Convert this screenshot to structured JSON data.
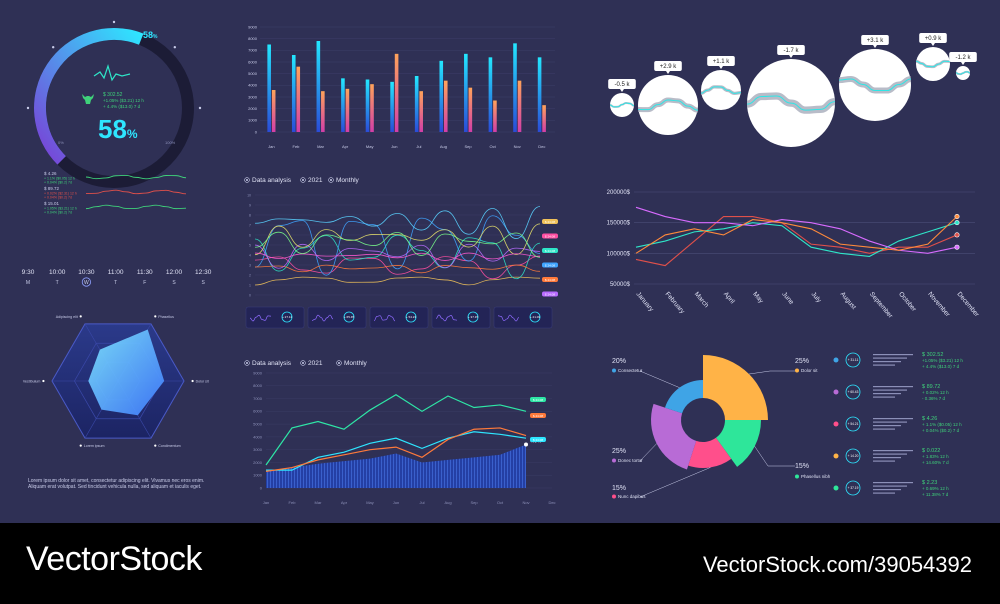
{
  "gauge": {
    "percent": 58,
    "percent_label": "58",
    "percent_sign": "%",
    "top_label": "58",
    "top_sign": "%",
    "min_label": "0%",
    "max_label": "100%",
    "stat_value": "$ 302.52",
    "stat_line1": "+1.05% ($3.21) 12 h",
    "stat_line2": "+ 4.4% ($13.0) 7 d",
    "color_start": "#7a3fd6",
    "color_end": "#2ee6ff"
  },
  "mini_series": [
    {
      "value": "$ 4.26",
      "line1": "+ 1.1% ($0.05) 12 h",
      "line2": "+ 0.04% ($0.2) 7d",
      "color": "#3fd17a"
    },
    {
      "value": "$ 89.72",
      "line1": "+ 0.02% ($2.31) 12 h",
      "line2": "+ 0.04% ($0.2) 7d",
      "color": "#e0504a"
    },
    {
      "value": "$ 15.01",
      "line1": "+ 1.05% ($3.21) 12 h",
      "line2": "+ 0.04% ($0.2) 7d",
      "color": "#3fd17a"
    }
  ],
  "timeline": [
    {
      "time": "9:30",
      "day": "M"
    },
    {
      "time": "10:00",
      "day": "T"
    },
    {
      "time": "10:30",
      "day": "W",
      "active": true
    },
    {
      "time": "11:00",
      "day": "T"
    },
    {
      "time": "11:30",
      "day": "F"
    },
    {
      "time": "12:00",
      "day": "S"
    },
    {
      "time": "12:30",
      "day": "S"
    }
  ],
  "radar": {
    "axes": [
      "Adipiscing elit",
      "Phasellus",
      "Dolor sit",
      "Condimentum",
      "Lorem ipsum",
      "Vestibulum"
    ],
    "values": [
      0.55,
      0.9,
      0.7,
      0.6,
      0.5,
      0.45
    ],
    "caption_1": "Lorem ipsum dolor sit amet, consectetur adipiscing elit. Vivamus nec eros enim.",
    "caption_2": "Aliquam erat volutpat. Sed tincidunt vehicula nulla, sed aliquam et iaculis eget."
  },
  "bar_chart": {
    "type": "bar",
    "categories": [
      "Jan",
      "Feb",
      "Mar",
      "Apr",
      "May",
      "Jun",
      "Jul",
      "Aug",
      "Sep",
      "Oct",
      "Nov",
      "Dec"
    ],
    "series": [
      {
        "values": [
          7500,
          6600,
          7800,
          4600,
          4500,
          4300,
          4800,
          6100,
          6700,
          6400,
          7600,
          6400
        ],
        "color": "#23e7ff"
      },
      {
        "values": [
          3600,
          5600,
          3500,
          3700,
          4100,
          6700,
          3500,
          4400,
          3800,
          2700,
          4400,
          2300
        ],
        "color": "#f08a6b"
      }
    ],
    "yticks": [
      "0",
      "1000",
      "2000",
      "3000",
      "4000",
      "5000",
      "6000",
      "7000",
      "8000",
      "9000"
    ],
    "ylim": [
      0,
      9000
    ]
  },
  "multiline_panel": {
    "radio_1": "Data analysis",
    "radio_2": "2021",
    "radio_3": "Monthly",
    "yticks": [
      "0",
      "1",
      "2",
      "3",
      "4",
      "5",
      "6",
      "7",
      "8",
      "9",
      "10"
    ],
    "series_colors": [
      "#f0c15a",
      "#ff4fa2",
      "#2ee6c8",
      "#3fa4ff",
      "#ff7a3b",
      "#b86bff",
      "#e6e06a",
      "#5ad1ff",
      "#ff5ad1",
      "#7aff8a"
    ],
    "tags": [
      "$ 24.08",
      "$ 24.08",
      "$ 24.08",
      "$ 24.08",
      "$ 24.08",
      "$ 24.08"
    ],
    "cards": [
      "+ 27.11",
      "+ 65.45",
      "+ 54.21",
      "+ 37.15",
      "+ 21.03"
    ]
  },
  "area_panel": {
    "radio_1": "Data analysis",
    "radio_2": "2021",
    "radio_3": "Monthly",
    "months": [
      "Jan",
      "Feb",
      "Mar",
      "Apr",
      "May",
      "Jun",
      "Jul",
      "Aug",
      "Sep",
      "Oct",
      "Nov",
      "Dec"
    ],
    "yticks": [
      "0",
      "1000",
      "2000",
      "3000",
      "4000",
      "5000",
      "6000",
      "7000",
      "8000",
      "9000"
    ],
    "ylim": [
      0,
      9000
    ],
    "teal": [
      1800,
      4700,
      5200,
      4600,
      6100,
      7300,
      6000,
      7200,
      6300,
      6500,
      6000,
      7100
    ],
    "orange": [
      1300,
      1600,
      2200,
      2600,
      3000,
      3200,
      2400,
      3800,
      4600,
      4700,
      4100,
      5600
    ],
    "cyan": [
      1400,
      1400,
      2400,
      2800,
      3500,
      3900,
      3100,
      3900,
      4400,
      4200,
      3900,
      4000
    ],
    "area": [
      1300,
      1600,
      1900,
      2100,
      2300,
      2700,
      2000,
      2200,
      2400,
      2600,
      3400,
      4500
    ],
    "marker_label": "4.6 k",
    "tags": [
      "$ 24.08",
      "$ 24.08",
      "$ 24.08"
    ]
  },
  "bubbles": [
    {
      "label": "-0.5 k",
      "r": 12
    },
    {
      "label": "+2.9 k",
      "r": 30
    },
    {
      "label": "+1.1 k",
      "r": 20
    },
    {
      "label": "-1.7 k",
      "r": 44
    },
    {
      "label": "+3.1 k",
      "r": 36
    },
    {
      "label": "+0.9 k",
      "r": 17
    },
    {
      "label": "-1.2 k",
      "r": 7
    }
  ],
  "month_lines": {
    "type": "line",
    "categories": [
      "January",
      "February",
      "March",
      "April",
      "May",
      "June",
      "July",
      "August",
      "September",
      "October",
      "November",
      "December"
    ],
    "yticks": [
      "50000$",
      "100000$",
      "150000$",
      "200000$"
    ],
    "ylim": [
      50000,
      200000
    ],
    "series": [
      {
        "color": "#e0504a",
        "values": [
          90000,
          80000,
          120000,
          160000,
          160000,
          150000,
          115000,
          110000,
          100000,
          110000,
          110000,
          130000
        ]
      },
      {
        "color": "#2ee6c8",
        "values": [
          110000,
          120000,
          135000,
          140000,
          150000,
          145000,
          110000,
          100000,
          95000,
          120000,
          135000,
          150000
        ]
      },
      {
        "color": "#d86bff",
        "values": [
          175000,
          160000,
          150000,
          150000,
          145000,
          155000,
          150000,
          140000,
          120000,
          105000,
          100000,
          110000
        ]
      },
      {
        "color": "#ff8a3b",
        "values": [
          100000,
          130000,
          140000,
          130000,
          155000,
          150000,
          140000,
          115000,
          110000,
          105000,
          115000,
          160000
        ]
      }
    ]
  },
  "donut": {
    "slices": [
      {
        "pct": 25,
        "label": "Dolor sit",
        "pct_label": "25%",
        "color": "#ffb347"
      },
      {
        "pct": 15,
        "label": "Phasellus nibh",
        "pct_label": "15%",
        "color": "#2ee69a"
      },
      {
        "pct": 15,
        "label": "Nunc dapibus",
        "pct_label": "15%",
        "color": "#ff4f8b"
      },
      {
        "pct": 25,
        "label": "Donec tortor",
        "pct_label": "25%",
        "color": "#b86bd6"
      },
      {
        "pct": 20,
        "label": "Consectetur",
        "pct_label": "20%",
        "color": "#3fa4e6"
      }
    ]
  },
  "legend_list": [
    {
      "dot": "#3fa4e6",
      "ring": "+ 31.11",
      "value": "$ 302.52",
      "line1": "+1.05% ($3.21) 12 h",
      "line2": "+ 4.4% ($13.0) 7 d"
    },
    {
      "dot": "#b86bd6",
      "ring": "+ 60.43",
      "value": "$ 89.72",
      "line1": "+ 0.02% 12 h",
      "line2": "- 0.36% 7 d"
    },
    {
      "dot": "#ff4f8b",
      "ring": "+ 54.21",
      "value": "$ 4.26",
      "line1": "+ 1.1% ($0.05) 12 h",
      "line2": "+ 0.04% ($0.2) 7 d"
    },
    {
      "dot": "#ffb347",
      "ring": "+ 14.20",
      "value": "$ 0.022",
      "line1": "+ 1.83% 12 h",
      "line2": "+ 14.60% 7 d"
    },
    {
      "dot": "#2ee69a",
      "ring": "+ 37.19",
      "value": "$ 2.23",
      "line1": "+ 0.69% 12 h",
      "line2": "+ 11.38% 7 d"
    }
  ],
  "watermark": {
    "logo": "VectorStock",
    "id": "VectorStock.com/39054392"
  }
}
